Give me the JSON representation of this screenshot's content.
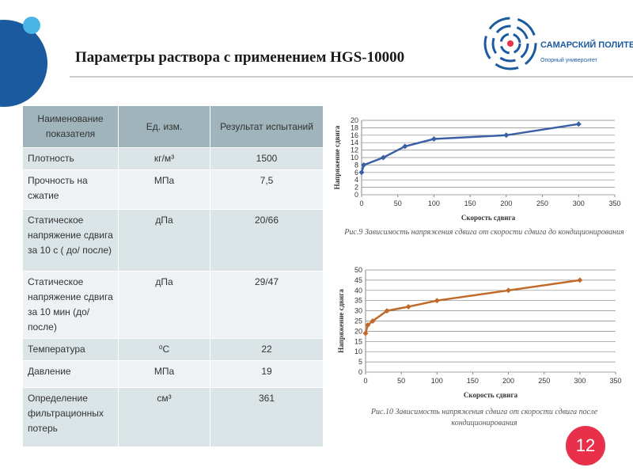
{
  "header": {
    "title": "Параметры раствора с применением HGS-10000",
    "logo_name": "САМАРСКИЙ ПОЛИТЕХ",
    "logo_subtitle": "Опорный университет"
  },
  "table": {
    "columns": [
      "Наименование показателя",
      "Ед. изм.",
      "Результат испытаний"
    ],
    "rows": [
      [
        "Плотность",
        "кг/м³",
        "1500"
      ],
      [
        "Прочность на сжатие",
        "МПа",
        "7,5"
      ],
      [
        "Статическое напряжение сдвига за 10 с ( до/ после)",
        "дПа",
        "20/66"
      ],
      [
        "Статическое напряжение сдвига за 10 мин (до/после)",
        "дПа",
        "29/47"
      ],
      [
        "Температура",
        "⁰С",
        "22"
      ],
      [
        "Давление",
        "МПа",
        "19"
      ],
      [
        "Определение фильтрационных потерь",
        "см³",
        "361"
      ]
    ]
  },
  "page_number": "12",
  "chart_data": [
    {
      "type": "line",
      "xlabel": "Скорость сдвига",
      "ylabel": "Напряжение сдвига",
      "caption": "Рис.9 Зависимость напряжения сдвига от скорости сдвига до кондиционирования",
      "x": [
        0,
        3,
        30,
        60,
        100,
        200,
        300
      ],
      "series": [
        {
          "color": "#3a5fa5",
          "values": [
            6,
            8,
            10,
            13,
            15,
            16,
            19
          ]
        }
      ],
      "xlim": [
        0,
        350
      ],
      "xticks": [
        0,
        50,
        100,
        150,
        200,
        250,
        300,
        350
      ],
      "ylim": [
        0,
        20
      ],
      "yticks": [
        0,
        2,
        4,
        6,
        8,
        10,
        12,
        14,
        16,
        18,
        20
      ],
      "grid": true
    },
    {
      "type": "line",
      "xlabel": "Скорость сдвига",
      "ylabel": "Напряжение сдвига",
      "caption": "Рис.10  Зависимость напряжения сдвига от скорости сдвига после кондиционирования",
      "x": [
        0,
        3,
        10,
        30,
        60,
        100,
        200,
        300
      ],
      "series": [
        {
          "color": "#c0692a",
          "values": [
            19,
            23,
            25,
            30,
            32,
            35,
            40,
            45
          ]
        }
      ],
      "xlim": [
        0,
        350
      ],
      "xticks": [
        0,
        50,
        100,
        150,
        200,
        250,
        300,
        350
      ],
      "ylim": [
        0,
        50
      ],
      "yticks": [
        0,
        5,
        10,
        15,
        20,
        25,
        30,
        35,
        40,
        45,
        50
      ],
      "grid": true
    }
  ]
}
